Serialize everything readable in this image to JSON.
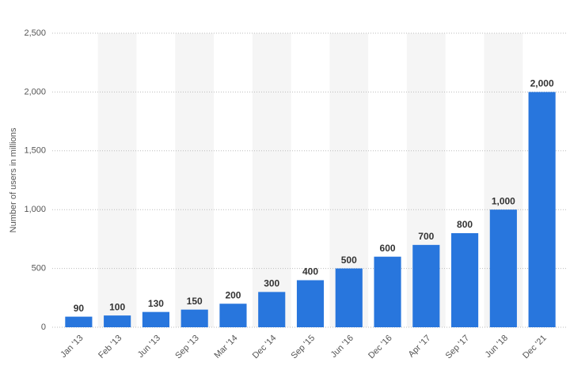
{
  "chart_data": {
    "type": "bar",
    "y_axis_label": "Number of users in millions",
    "categories": [
      "Jan '13",
      "Feb '13",
      "Jun '13",
      "Sep '13",
      "Mar '14",
      "Dec '14",
      "Sep '15",
      "Jun '16",
      "Dec '16",
      "Apr '17",
      "Sep '17",
      "Jun '18",
      "Dec '21"
    ],
    "values": [
      90,
      100,
      130,
      150,
      200,
      300,
      400,
      500,
      600,
      700,
      800,
      1000,
      2000
    ],
    "value_labels": [
      "90",
      "100",
      "130",
      "150",
      "200",
      "300",
      "400",
      "500",
      "600",
      "700",
      "800",
      "1,000",
      "2,000"
    ],
    "color": "#2876dd",
    "ylim": [
      0,
      2500
    ],
    "yticks": [
      0,
      500,
      {
        "value": 1000,
        "label": "1,000"
      },
      {
        "value": 1500,
        "label": "1,500"
      },
      {
        "value": 2000,
        "label": "2,000"
      },
      {
        "value": 2500,
        "label": "2,500"
      }
    ],
    "grid": true
  }
}
